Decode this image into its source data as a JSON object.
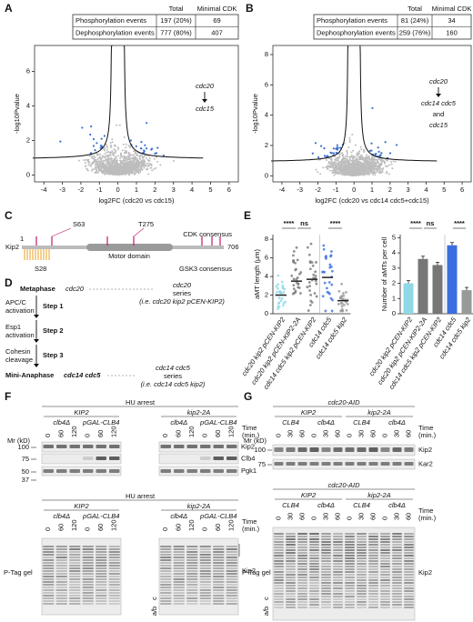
{
  "panel_labels": [
    "A",
    "B",
    "C",
    "D",
    "E",
    "F",
    "G"
  ],
  "tables": [
    {
      "header": [
        "Total",
        "Minimal CDK"
      ],
      "rows": [
        [
          "Phosphorylation events",
          "197 (20%)",
          "69"
        ],
        [
          "Dephosphorylation events",
          "777 (80%)",
          "407"
        ]
      ]
    },
    {
      "header": [
        "Total",
        "Minimal CDK"
      ],
      "rows": [
        [
          "Phosphorylation events",
          "81 (24%)",
          "34"
        ],
        [
          "Dephosphorylation events",
          "259 (76%)",
          "160"
        ]
      ]
    }
  ],
  "volcano_annotations": [
    [
      "cdc20",
      "cdc15"
    ],
    [
      "cdc20",
      "cdc14 cdc5",
      "and",
      "cdc15"
    ]
  ],
  "chart_data": [
    {
      "type": "volcano",
      "xlabel": "log2FC (cdc20 vs cdc15)",
      "ylabel": "-log10Pvalue",
      "xlim": [
        -4.5,
        6.5
      ],
      "ylim": [
        -0.4,
        7.5
      ],
      "xticks": [
        -4,
        -3,
        -2,
        -1,
        0,
        1,
        2,
        3,
        4,
        5,
        6
      ],
      "yticks": [
        0,
        2,
        4,
        6
      ],
      "colors": [
        "#bdbdbd",
        "#3a6fd0"
      ]
    },
    {
      "type": "volcano",
      "xlabel": "log2FC (cdc20 vs cdc14 cdc5+cdc15)",
      "ylabel": "-log10Pvalue",
      "xlim": [
        -4.5,
        6.5
      ],
      "ylim": [
        -0.4,
        8.6
      ],
      "xticks": [
        -4,
        -3,
        -2,
        -1,
        0,
        1,
        2,
        3,
        4,
        5,
        6
      ],
      "yticks": [
        0,
        2,
        4,
        6,
        8
      ],
      "colors": [
        "#bdbdbd",
        "#3a6fd0"
      ]
    },
    {
      "type": "dot",
      "ylabel": "aMT length (μm)",
      "categories": [
        "cdc20 kip2 pCEN-KIP2",
        "cdc20 kip2 pCEN-KIP2-2A",
        "cdc14 cdc5 kip2 pCEN-KIP2",
        "cdc14 cdc5",
        "cdc14 cdc5 kip2"
      ],
      "values": [
        2.0,
        3.5,
        3.7,
        3.9,
        1.4
      ],
      "colors": [
        "#8fd9e6",
        "#777777",
        "#777777",
        "#3b6fe0",
        "#999999"
      ],
      "ylim": [
        0,
        8.5
      ],
      "yticks": [
        0,
        2,
        4,
        6,
        8
      ],
      "annotations": [
        "****",
        "ns",
        "****"
      ]
    },
    {
      "type": "bar",
      "ylabel": "Number of aMTs per cell",
      "categories": [
        "cdc20 kip2 pCEN-KIP2",
        "cdc20 kip2 pCEN-KIP2-2A",
        "cdc14 cdc5 kip2 pCEN-KIP2",
        "cdc14 cdc5",
        "cdc14 cdc5 kip2"
      ],
      "values": [
        2.0,
        3.6,
        3.2,
        4.5,
        1.55
      ],
      "colors": [
        "#8fd9e6",
        "#777777",
        "#777777",
        "#3b6fe0",
        "#999999"
      ],
      "ylim": [
        0,
        5.2
      ],
      "yticks": [
        0,
        1,
        2,
        3,
        4,
        5
      ],
      "annotations": [
        "****",
        "ns",
        "****"
      ]
    }
  ],
  "C": {
    "protein": "Kip2",
    "start": "1",
    "end": "706",
    "sites": [
      "S63",
      "T275",
      "S28"
    ],
    "domain": "Motor domain",
    "cdk": "CDK consensus",
    "gsk3": "GSK3 consensus"
  },
  "D": {
    "start": "Metaphase",
    "start_strain": "cdc20",
    "start_series": [
      "cdc20",
      "series",
      "(i.e. cdc20 kip2 pCEN-KIP2)"
    ],
    "steps": [
      {
        "left": [
          "APC/C",
          "activation"
        ],
        "step": "Step 1"
      },
      {
        "left": [
          "Esp1",
          "activation"
        ],
        "step": "Step 2"
      },
      {
        "left": [
          "Cohesin",
          "cleavage"
        ],
        "step": "Step 3"
      }
    ],
    "end": "Mini-Anaphase",
    "end_strain": "cdc14 cdc5",
    "end_series": [
      "cdc14 cdc5",
      "series",
      "(i.e. cdc14 cdc5 kip2)"
    ]
  },
  "F": {
    "title": "HU arrest",
    "genotypes": [
      "KIP2",
      "kip2-2A"
    ],
    "conditions": [
      "clb4Δ",
      "pGAL-CLB4"
    ],
    "times": [
      0,
      60,
      120
    ],
    "time_label": [
      "Time",
      "(min.)"
    ],
    "mr_label": "Mr (kD)",
    "markers": [
      100,
      75,
      50,
      37
    ],
    "blots": [
      "Kip2",
      "Clb4",
      "Pgk1"
    ],
    "ptag": "P-Tag gel",
    "ptag_blot": "Kip2",
    "bands": [
      "c",
      "a/b"
    ]
  },
  "G": {
    "title": "cdc20-AID",
    "genotypes": [
      "KIP2",
      "kip2-2A"
    ],
    "conditions": [
      "CLB4",
      "clb4Δ"
    ],
    "times": [
      0,
      30,
      60
    ],
    "time_label": [
      "Time",
      "(min.)"
    ],
    "mr_label": "Mr (kD)",
    "markers": [
      100,
      75
    ],
    "blots": [
      "Kip2",
      "Kar2"
    ],
    "ptag": "P-Tag gel",
    "ptag_blot": "Kip2",
    "bands": [
      "c",
      "a/b"
    ]
  }
}
